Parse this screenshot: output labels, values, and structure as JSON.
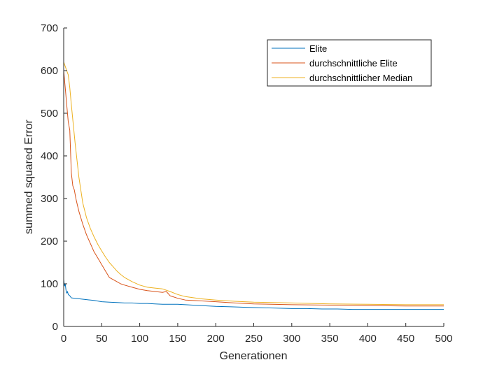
{
  "chart_data": {
    "type": "line",
    "title": "",
    "xlabel": "Generationen",
    "ylabel": "summed squared Error",
    "xlim": [
      0,
      500
    ],
    "ylim": [
      0,
      700
    ],
    "xticks": [
      0,
      50,
      100,
      150,
      200,
      250,
      300,
      350,
      400,
      450,
      500
    ],
    "yticks": [
      0,
      100,
      200,
      300,
      400,
      500,
      600,
      700
    ],
    "grid": false,
    "legend_position": "top-right",
    "series": [
      {
        "name": "Elite",
        "color": "#0072BD",
        "x": [
          0,
          1,
          2,
          3,
          4,
          5,
          6,
          8,
          10,
          15,
          20,
          30,
          40,
          50,
          60,
          70,
          80,
          90,
          100,
          110,
          120,
          130,
          140,
          150,
          160,
          170,
          180,
          200,
          220,
          240,
          260,
          280,
          300,
          320,
          340,
          360,
          380,
          400,
          420,
          440,
          460,
          480,
          500
        ],
        "y": [
          110,
          95,
          100,
          85,
          78,
          82,
          75,
          72,
          67,
          66,
          65,
          63,
          61,
          58,
          57,
          56,
          55,
          55,
          54,
          54,
          53,
          52,
          52,
          52,
          51,
          50,
          49,
          47,
          46,
          45,
          44,
          43,
          42,
          42,
          41,
          41,
          40,
          40,
          40,
          40,
          40,
          40,
          40
        ]
      },
      {
        "name": "durchschnittliche Elite",
        "color": "#D95319",
        "x": [
          0,
          2,
          4,
          6,
          8,
          10,
          12,
          14,
          16,
          18,
          20,
          25,
          30,
          35,
          40,
          45,
          50,
          55,
          60,
          65,
          70,
          75,
          80,
          90,
          100,
          110,
          120,
          130,
          135,
          140,
          150,
          160,
          180,
          200,
          225,
          250,
          300,
          350,
          400,
          450,
          500
        ],
        "y": [
          600,
          560,
          520,
          480,
          460,
          360,
          330,
          320,
          300,
          285,
          270,
          240,
          215,
          195,
          175,
          160,
          145,
          130,
          115,
          110,
          105,
          100,
          97,
          92,
          87,
          84,
          82,
          80,
          82,
          72,
          66,
          62,
          60,
          58,
          55,
          53,
          51,
          50,
          49,
          48,
          48
        ]
      },
      {
        "name": "durchschnittlicher Median",
        "color": "#EDB120",
        "x": [
          0,
          2,
          4,
          6,
          8,
          10,
          15,
          20,
          25,
          30,
          35,
          40,
          45,
          50,
          55,
          60,
          65,
          70,
          75,
          80,
          90,
          100,
          110,
          120,
          130,
          140,
          150,
          160,
          180,
          200,
          225,
          250,
          300,
          350,
          400,
          450,
          500
        ],
        "y": [
          620,
          610,
          600,
          590,
          560,
          520,
          430,
          350,
          290,
          255,
          230,
          210,
          192,
          177,
          163,
          150,
          140,
          130,
          122,
          115,
          105,
          97,
          92,
          90,
          88,
          82,
          75,
          70,
          65,
          62,
          59,
          57,
          55,
          53,
          52,
          51,
          51
        ]
      }
    ]
  }
}
